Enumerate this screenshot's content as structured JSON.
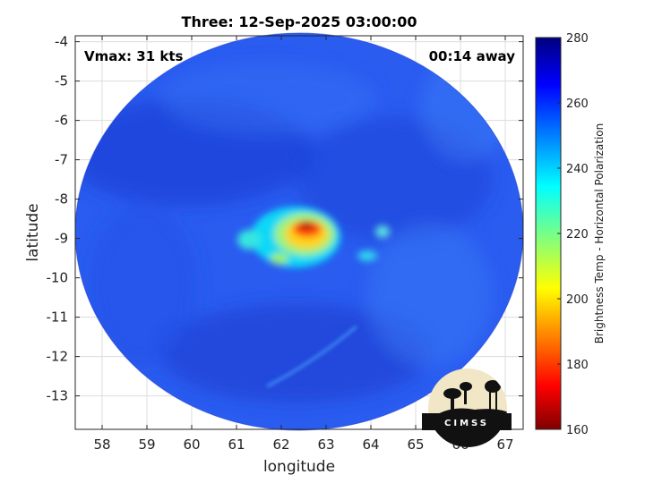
{
  "chart_data": {
    "type": "heatmap",
    "title": "Three: 12-Sep-2025 03:00:00",
    "xlabel": "longitude",
    "ylabel": "latitude",
    "xlim": [
      57.4,
      67.4
    ],
    "ylim": [
      -13.85,
      -3.85
    ],
    "xticks": [
      58,
      59,
      60,
      61,
      62,
      63,
      64,
      65,
      66,
      67
    ],
    "yticks": [
      -4,
      -5,
      -6,
      -7,
      -8,
      -9,
      -10,
      -11,
      -12,
      -13
    ],
    "grid": true,
    "annotations": {
      "top_left": "Vmax: 31 kts",
      "top_right": "00:14 away"
    },
    "colorbar": {
      "label": "Brightness Temp - Horizontal Polarization",
      "range": [
        160,
        280
      ],
      "ticks": [
        280,
        260,
        240,
        220,
        200,
        180,
        160
      ],
      "colormap": "jet"
    },
    "swath_center": {
      "lon": 62.4,
      "lat": -8.95
    },
    "background_value": 258,
    "features": [
      {
        "name": "core",
        "lon": 62.55,
        "lat": -8.8,
        "min_value": 170
      },
      {
        "name": "main-band",
        "lon": 62.6,
        "lat": -9.05,
        "min_value": 200
      },
      {
        "name": "west-cell",
        "lon": 61.3,
        "lat": -9.25,
        "min_value": 225
      },
      {
        "name": "east-cell",
        "lon": 64.3,
        "lat": -9.0,
        "min_value": 238
      },
      {
        "name": "southeast-cell",
        "lon": 63.8,
        "lat": -9.6,
        "min_value": 232
      }
    ]
  },
  "logo": {
    "text": "CIMSS",
    "colors": {
      "bg": "#f1e6c6",
      "fg": "#111111"
    }
  }
}
